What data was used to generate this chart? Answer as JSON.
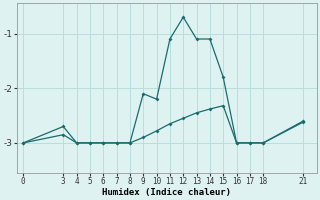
{
  "xlabel": "Humidex (Indice chaleur)",
  "ylabel": "",
  "background_color": "#dff2f2",
  "grid_color": "#b8dede",
  "line_color": "#1a6b6b",
  "x_ticks": [
    0,
    3,
    4,
    5,
    6,
    7,
    8,
    9,
    10,
    11,
    12,
    13,
    14,
    15,
    16,
    17,
    18,
    21
  ],
  "yticks": [
    -1,
    -2,
    -3
  ],
  "ylim": [
    -3.55,
    -0.45
  ],
  "xlim": [
    -0.5,
    22
  ],
  "series1_x": [
    0,
    3,
    4,
    5,
    6,
    7,
    8,
    9,
    10,
    11,
    12,
    13,
    14,
    15,
    16,
    17,
    18,
    21
  ],
  "series1_y": [
    -3.0,
    -2.7,
    -3.0,
    -3.0,
    -3.0,
    -3.0,
    -3.0,
    -2.1,
    -2.2,
    -1.1,
    -0.7,
    -1.1,
    -1.1,
    -1.8,
    -3.0,
    -3.0,
    -3.0,
    -2.6
  ],
  "series2_x": [
    0,
    3,
    4,
    5,
    6,
    7,
    8,
    9,
    10,
    11,
    12,
    13,
    14,
    15,
    16,
    17,
    18,
    21
  ],
  "series2_y": [
    -3.0,
    -2.85,
    -3.0,
    -3.0,
    -3.0,
    -3.0,
    -3.0,
    -2.9,
    -2.78,
    -2.65,
    -2.55,
    -2.45,
    -2.38,
    -2.32,
    -3.0,
    -3.0,
    -3.0,
    -2.62
  ]
}
